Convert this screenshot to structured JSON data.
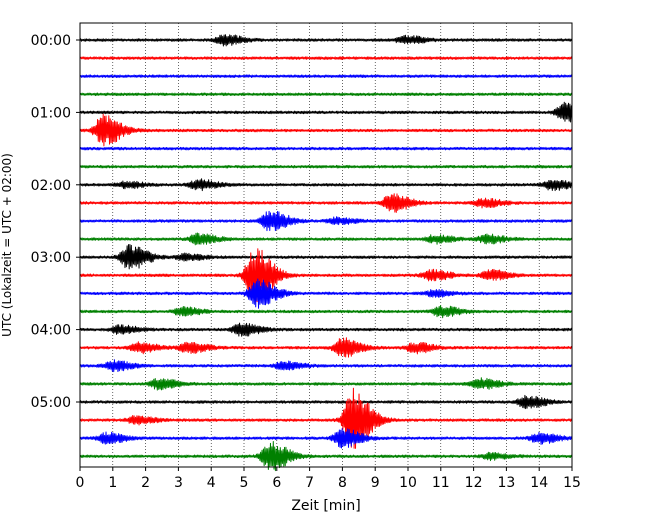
{
  "chart_data": {
    "type": "line",
    "xlabel": "Zeit  [min]",
    "ylabel": "UTC (Lokalzeit = UTC + 02:00)",
    "xlim": [
      0,
      15
    ],
    "x_ticks": [
      "0",
      "1",
      "2",
      "3",
      "4",
      "5",
      "6",
      "7",
      "8",
      "9",
      "10",
      "11",
      "12",
      "13",
      "14",
      "15"
    ],
    "y_ticks": [
      "00:00",
      "01:00",
      "02:00",
      "03:00",
      "04:00",
      "05:00"
    ],
    "grid": "vertical dotted at each minute",
    "colors": [
      "#000000",
      "#ff0000",
      "#0000ff",
      "#008000"
    ],
    "traces_per_hour": 4,
    "trace_minutes": 15,
    "series": [
      {
        "start": "00:00",
        "color": "#000000",
        "bursts": [
          {
            "t": 4.4,
            "a": 5
          },
          {
            "t": 9.9,
            "a": 4
          }
        ]
      },
      {
        "start": "00:15",
        "color": "#ff0000",
        "bursts": []
      },
      {
        "start": "00:30",
        "color": "#0000ff",
        "bursts": []
      },
      {
        "start": "00:45",
        "color": "#008000",
        "bursts": []
      },
      {
        "start": "01:00",
        "color": "#000000",
        "bursts": [
          {
            "t": 14.8,
            "a": 10
          }
        ]
      },
      {
        "start": "01:15",
        "color": "#ff0000",
        "bursts": [
          {
            "t": 0.7,
            "a": 15
          }
        ]
      },
      {
        "start": "01:30",
        "color": "#0000ff",
        "bursts": []
      },
      {
        "start": "01:45",
        "color": "#008000",
        "bursts": []
      },
      {
        "start": "02:00",
        "color": "#000000",
        "bursts": [
          {
            "t": 1.4,
            "a": 3
          },
          {
            "t": 3.6,
            "a": 5
          },
          {
            "t": 14.4,
            "a": 5
          }
        ]
      },
      {
        "start": "02:15",
        "color": "#ff0000",
        "bursts": [
          {
            "t": 9.5,
            "a": 9
          },
          {
            "t": 12.3,
            "a": 4
          }
        ]
      },
      {
        "start": "02:30",
        "color": "#0000ff",
        "bursts": [
          {
            "t": 5.8,
            "a": 10
          },
          {
            "t": 7.8,
            "a": 3
          }
        ]
      },
      {
        "start": "02:45",
        "color": "#008000",
        "bursts": [
          {
            "t": 3.6,
            "a": 5
          },
          {
            "t": 10.8,
            "a": 4
          },
          {
            "t": 12.4,
            "a": 4
          }
        ]
      },
      {
        "start": "03:00",
        "color": "#000000",
        "bursts": [
          {
            "t": 1.5,
            "a": 12
          },
          {
            "t": 3.2,
            "a": 3
          }
        ]
      },
      {
        "start": "03:15",
        "color": "#ff0000",
        "bursts": [
          {
            "t": 5.3,
            "a": 28
          },
          {
            "t": 10.7,
            "a": 5
          },
          {
            "t": 12.5,
            "a": 5
          }
        ]
      },
      {
        "start": "03:30",
        "color": "#0000ff",
        "bursts": [
          {
            "t": 5.4,
            "a": 14
          },
          {
            "t": 10.8,
            "a": 3
          }
        ]
      },
      {
        "start": "03:45",
        "color": "#008000",
        "bursts": [
          {
            "t": 3.1,
            "a": 4
          },
          {
            "t": 11.0,
            "a": 5
          }
        ]
      },
      {
        "start": "04:00",
        "color": "#000000",
        "bursts": [
          {
            "t": 1.2,
            "a": 4
          },
          {
            "t": 4.9,
            "a": 6
          }
        ]
      },
      {
        "start": "04:15",
        "color": "#ff0000",
        "bursts": [
          {
            "t": 1.8,
            "a": 5
          },
          {
            "t": 3.3,
            "a": 5
          },
          {
            "t": 8.0,
            "a": 9
          },
          {
            "t": 10.2,
            "a": 5
          }
        ]
      },
      {
        "start": "04:30",
        "color": "#0000ff",
        "bursts": [
          {
            "t": 1.0,
            "a": 5
          },
          {
            "t": 6.2,
            "a": 4
          }
        ]
      },
      {
        "start": "04:45",
        "color": "#008000",
        "bursts": [
          {
            "t": 2.4,
            "a": 5
          },
          {
            "t": 12.2,
            "a": 5
          }
        ]
      },
      {
        "start": "05:00",
        "color": "#000000",
        "bursts": [
          {
            "t": 13.6,
            "a": 6
          }
        ]
      },
      {
        "start": "05:15",
        "color": "#ff0000",
        "bursts": [
          {
            "t": 8.3,
            "a": 32
          },
          {
            "t": 1.7,
            "a": 4
          }
        ]
      },
      {
        "start": "05:30",
        "color": "#0000ff",
        "bursts": [
          {
            "t": 0.8,
            "a": 5
          },
          {
            "t": 8.0,
            "a": 9
          },
          {
            "t": 14.0,
            "a": 5
          }
        ]
      },
      {
        "start": "05:45",
        "color": "#008000",
        "bursts": [
          {
            "t": 5.8,
            "a": 14
          },
          {
            "t": 12.5,
            "a": 3
          }
        ]
      }
    ]
  }
}
